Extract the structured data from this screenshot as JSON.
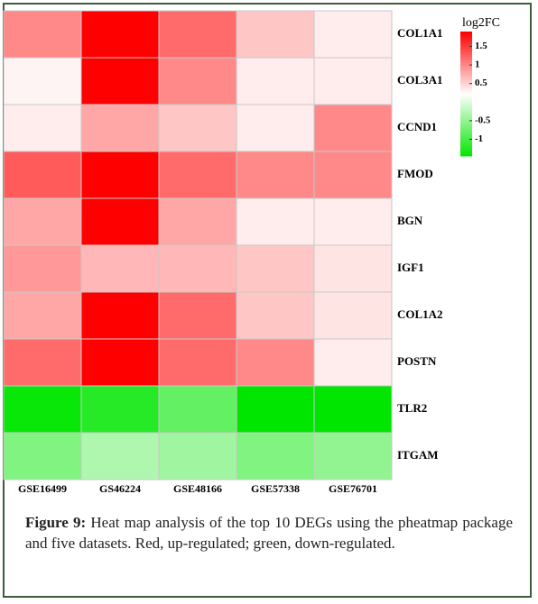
{
  "chart_data": {
    "type": "heatmap",
    "columns": [
      "GSE16499",
      "GS46224",
      "GSE48166",
      "GSE57338",
      "GSE76701"
    ],
    "rows": [
      "COL1A1",
      "COL3A1",
      "CCND1",
      "FMOD",
      "BGN",
      "IGF1",
      "COL1A2",
      "POSTN",
      "TLR2",
      "ITGAM"
    ],
    "values": [
      [
        1.0,
        1.9,
        1.2,
        0.6,
        0.35
      ],
      [
        0.3,
        1.9,
        1.0,
        0.35,
        0.35
      ],
      [
        0.35,
        0.8,
        0.6,
        0.35,
        1.0
      ],
      [
        1.3,
        1.9,
        1.2,
        1.0,
        1.0
      ],
      [
        0.8,
        1.9,
        0.8,
        0.35,
        0.35
      ],
      [
        0.9,
        0.7,
        0.7,
        0.6,
        0.4
      ],
      [
        0.8,
        1.9,
        1.2,
        0.6,
        0.4
      ],
      [
        1.2,
        1.9,
        1.2,
        1.0,
        0.35
      ],
      [
        -1.4,
        -1.2,
        -0.8,
        -1.45,
        -1.45
      ],
      [
        -0.6,
        -0.3,
        -0.4,
        -0.6,
        -0.5
      ]
    ],
    "colorbar_title": "log2FC",
    "zlim": [
      -1.45,
      1.9
    ],
    "zticks": [
      1.5,
      1,
      0.5,
      -0.5,
      -1
    ],
    "colors": [
      "#00e600",
      "#ffffff",
      "#ff0000"
    ]
  },
  "caption": {
    "label": "Figure 9:",
    "text": "Heat map analysis of the top 10 DEGs using the pheatmap package and five datasets. Red, up-regulated; green, down-regulated."
  }
}
